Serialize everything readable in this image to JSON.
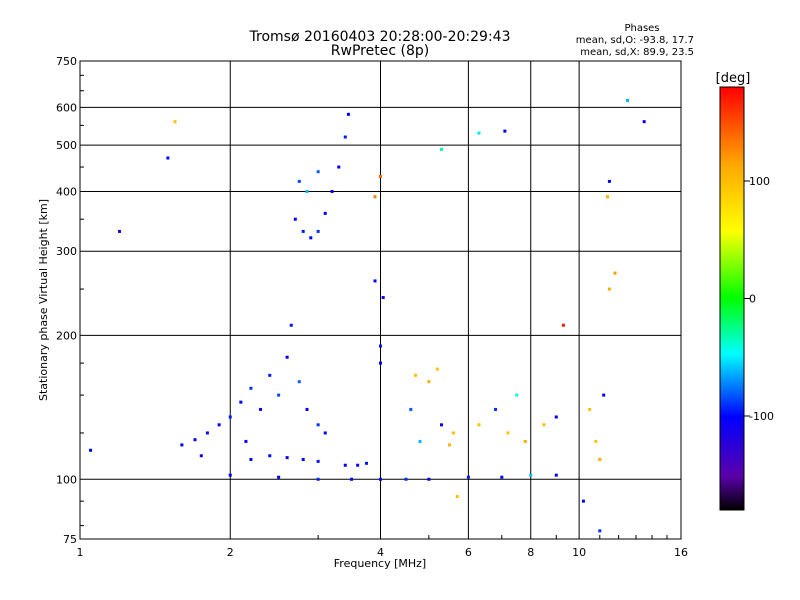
{
  "chart_data": {
    "type": "scatter",
    "title": "Tromsø 20160403 20:28:00-20:29:43",
    "subtitle": "RwPretec (8p)",
    "stats": {
      "header": "Phases",
      "line_o": "mean, sd,O: -93.8, 17.7",
      "line_x": "mean, sd,X: 89.9, 23.5"
    },
    "xlabel": "Frequency [MHz]",
    "ylabel": "Stationary phase Virtual Height [km]",
    "xscale": "log",
    "yscale": "log",
    "xlim": [
      1,
      16
    ],
    "ylim": [
      75,
      750
    ],
    "xticks": [
      1,
      2,
      4,
      6,
      8,
      10,
      16
    ],
    "xtick_labels": [
      "1",
      "2",
      "4",
      "6",
      "8",
      "10",
      "16"
    ],
    "yticks": [
      75,
      100,
      200,
      300,
      400,
      500,
      600,
      750
    ],
    "ytick_labels": [
      "75",
      "100",
      "200",
      "300",
      "400",
      "500",
      "600",
      "750"
    ],
    "grid": true,
    "colorbar": {
      "label": "[deg]",
      "range": [
        -180,
        180
      ],
      "ticks": [
        100,
        0,
        -100
      ],
      "tick_labels": [
        "100",
        "0",
        "-100"
      ],
      "colormap": [
        "#000000",
        "#5a00aa",
        "#0000ff",
        "#00ffff",
        "#00ff00",
        "#ffff00",
        "#ffa500",
        "#ff0000"
      ]
    },
    "series": [
      {
        "values": [
          {
            "x": 1.6,
            "y": 118,
            "c": -100
          },
          {
            "x": 1.7,
            "y": 121,
            "c": -105
          },
          {
            "x": 1.8,
            "y": 125,
            "c": -98
          },
          {
            "x": 1.9,
            "y": 130,
            "c": -102
          },
          {
            "x": 2.0,
            "y": 135,
            "c": -95
          },
          {
            "x": 2.1,
            "y": 145,
            "c": -100
          },
          {
            "x": 2.2,
            "y": 155,
            "c": -90
          },
          {
            "x": 2.3,
            "y": 140,
            "c": -105
          },
          {
            "x": 2.5,
            "y": 150,
            "c": -85
          },
          {
            "x": 2.6,
            "y": 180,
            "c": -100
          },
          {
            "x": 2.65,
            "y": 210,
            "c": -95
          },
          {
            "x": 2.75,
            "y": 160,
            "c": -80
          },
          {
            "x": 2.85,
            "y": 140,
            "c": -100
          },
          {
            "x": 3.0,
            "y": 130,
            "c": -90
          },
          {
            "x": 3.1,
            "y": 125,
            "c": -100
          },
          {
            "x": 1.75,
            "y": 112,
            "c": -110
          },
          {
            "x": 2.15,
            "y": 120,
            "c": -100
          },
          {
            "x": 2.4,
            "y": 165,
            "c": -95
          },
          {
            "x": 2.2,
            "y": 110,
            "c": -100
          },
          {
            "x": 2.4,
            "y": 112,
            "c": -98
          },
          {
            "x": 2.6,
            "y": 111,
            "c": -102
          },
          {
            "x": 2.8,
            "y": 110,
            "c": -100
          },
          {
            "x": 3.0,
            "y": 109,
            "c": -96
          },
          {
            "x": 3.4,
            "y": 107,
            "c": -100
          },
          {
            "x": 3.6,
            "y": 107,
            "c": -105
          },
          {
            "x": 3.75,
            "y": 108,
            "c": -95
          },
          {
            "x": 2.0,
            "y": 102,
            "c": -100
          },
          {
            "x": 2.5,
            "y": 101,
            "c": -100
          },
          {
            "x": 3.0,
            "y": 100,
            "c": -92
          },
          {
            "x": 3.5,
            "y": 100,
            "c": -100
          },
          {
            "x": 4.0,
            "y": 100,
            "c": -98
          },
          {
            "x": 4.5,
            "y": 100,
            "c": -90
          },
          {
            "x": 5.0,
            "y": 100,
            "c": -100
          },
          {
            "x": 6.0,
            "y": 101,
            "c": -95
          },
          {
            "x": 7.0,
            "y": 101,
            "c": -100
          },
          {
            "x": 8.0,
            "y": 102,
            "c": -60
          },
          {
            "x": 9.0,
            "y": 102,
            "c": -100
          },
          {
            "x": 2.7,
            "y": 350,
            "c": -100
          },
          {
            "x": 2.8,
            "y": 330,
            "c": -95
          },
          {
            "x": 2.9,
            "y": 320,
            "c": -100
          },
          {
            "x": 3.0,
            "y": 330,
            "c": -90
          },
          {
            "x": 3.1,
            "y": 360,
            "c": -100
          },
          {
            "x": 3.2,
            "y": 400,
            "c": -105
          },
          {
            "x": 3.3,
            "y": 450,
            "c": -100
          },
          {
            "x": 3.4,
            "y": 520,
            "c": -95
          },
          {
            "x": 3.45,
            "y": 580,
            "c": -100
          },
          {
            "x": 2.75,
            "y": 420,
            "c": -85
          },
          {
            "x": 2.85,
            "y": 400,
            "c": -60
          },
          {
            "x": 3.0,
            "y": 440,
            "c": -80
          },
          {
            "x": 4.0,
            "y": 175,
            "c": -100
          },
          {
            "x": 4.0,
            "y": 190,
            "c": -95
          },
          {
            "x": 4.05,
            "y": 240,
            "c": -100
          },
          {
            "x": 4.7,
            "y": 165,
            "c": 100
          },
          {
            "x": 5.0,
            "y": 160,
            "c": 110
          },
          {
            "x": 5.2,
            "y": 170,
            "c": 95
          },
          {
            "x": 4.6,
            "y": 140,
            "c": -80
          },
          {
            "x": 5.3,
            "y": 130,
            "c": -100
          },
          {
            "x": 5.6,
            "y": 125,
            "c": 100
          },
          {
            "x": 4.8,
            "y": 120,
            "c": -60
          },
          {
            "x": 5.5,
            "y": 118,
            "c": 105
          },
          {
            "x": 6.3,
            "y": 130,
            "c": 100
          },
          {
            "x": 6.8,
            "y": 140,
            "c": -90
          },
          {
            "x": 7.2,
            "y": 125,
            "c": 95
          },
          {
            "x": 7.8,
            "y": 120,
            "c": 110
          },
          {
            "x": 8.5,
            "y": 130,
            "c": 100
          },
          {
            "x": 9.0,
            "y": 135,
            "c": -100
          },
          {
            "x": 7.5,
            "y": 150,
            "c": -40
          },
          {
            "x": 10.5,
            "y": 140,
            "c": 100
          },
          {
            "x": 10.8,
            "y": 120,
            "c": 95
          },
          {
            "x": 11.0,
            "y": 110,
            "c": 110
          },
          {
            "x": 11.2,
            "y": 150,
            "c": -100
          },
          {
            "x": 11.5,
            "y": 420,
            "c": -100
          },
          {
            "x": 11.4,
            "y": 390,
            "c": 110
          },
          {
            "x": 1.05,
            "y": 115,
            "c": -100
          },
          {
            "x": 1.2,
            "y": 330,
            "c": -110
          },
          {
            "x": 1.5,
            "y": 470,
            "c": -100
          },
          {
            "x": 1.55,
            "y": 560,
            "c": 100
          },
          {
            "x": 3.9,
            "y": 260,
            "c": -100
          },
          {
            "x": 5.3,
            "y": 490,
            "c": -30
          },
          {
            "x": 6.3,
            "y": 530,
            "c": -50
          },
          {
            "x": 7.1,
            "y": 535,
            "c": -100
          },
          {
            "x": 13.5,
            "y": 560,
            "c": -100
          },
          {
            "x": 12.5,
            "y": 620,
            "c": -60
          },
          {
            "x": 9.3,
            "y": 210,
            "c": 170
          },
          {
            "x": 11.8,
            "y": 270,
            "c": 120
          },
          {
            "x": 11.5,
            "y": 250,
            "c": 110
          },
          {
            "x": 10.2,
            "y": 90,
            "c": -100
          },
          {
            "x": 11.0,
            "y": 78,
            "c": -90
          },
          {
            "x": 5.7,
            "y": 92,
            "c": 100
          },
          {
            "x": 3.9,
            "y": 390,
            "c": 130
          },
          {
            "x": 4.0,
            "y": 430,
            "c": 140
          }
        ]
      }
    ]
  }
}
